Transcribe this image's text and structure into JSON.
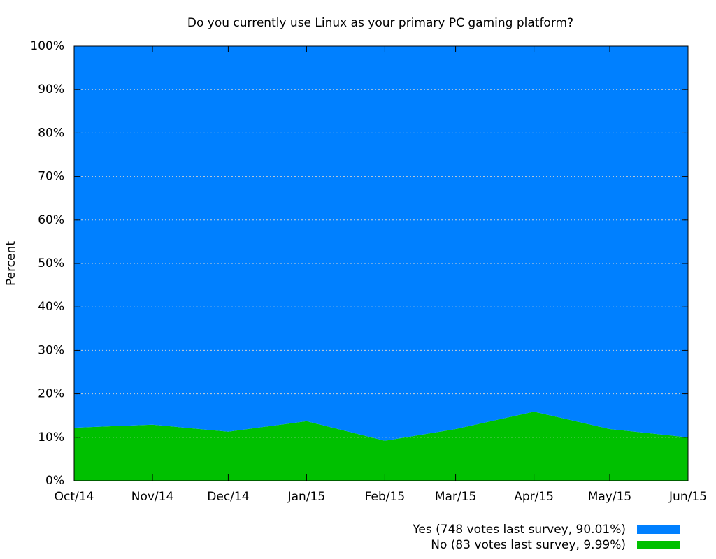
{
  "chart_data": {
    "type": "stacked_area",
    "title": "Do you currently use Linux as your primary PC gaming platform?",
    "y_label": "Percent",
    "categories": [
      "Oct/14",
      "Nov/14",
      "Dec/14",
      "Jan/15",
      "Feb/15",
      "Mar/15",
      "Apr/15",
      "May/15",
      "Jun/15"
    ],
    "series": [
      {
        "name": "Yes (748 votes last survey, 90.01%)",
        "color": "#0080ff",
        "values": [
          87.8,
          87.1,
          88.7,
          86.3,
          90.8,
          88.1,
          84.1,
          88.1,
          90.01
        ]
      },
      {
        "name": "No (83 votes last survey, 9.99%)",
        "color": "#00c000",
        "values": [
          12.2,
          12.9,
          11.3,
          13.7,
          9.2,
          11.9,
          15.9,
          11.9,
          9.99
        ]
      }
    ],
    "ylim": [
      0,
      100
    ],
    "yticks": [
      {
        "value": 0,
        "label": "0%"
      },
      {
        "value": 10,
        "label": "10%"
      },
      {
        "value": 20,
        "label": "20%"
      },
      {
        "value": 30,
        "label": "30%"
      },
      {
        "value": 40,
        "label": "40%"
      },
      {
        "value": 50,
        "label": "50%"
      },
      {
        "value": 60,
        "label": "60%"
      },
      {
        "value": 70,
        "label": "70%"
      },
      {
        "value": 80,
        "label": "80%"
      },
      {
        "value": 90,
        "label": "90%"
      },
      {
        "value": 100,
        "label": "100%"
      }
    ],
    "grid": true,
    "legend": "bottom-right"
  }
}
